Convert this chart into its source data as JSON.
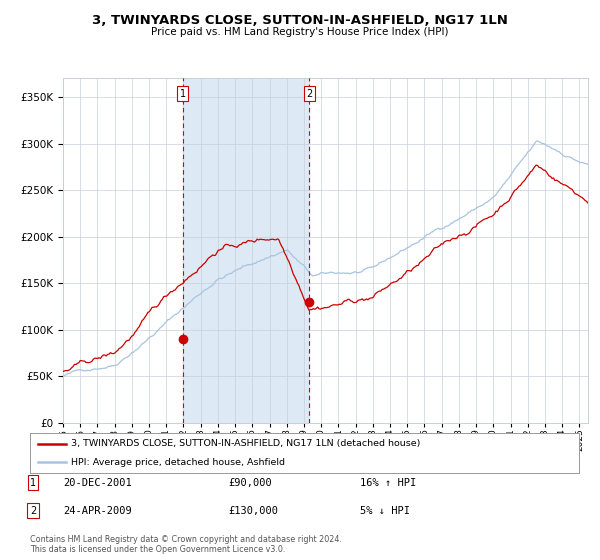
{
  "title": "3, TWINYARDS CLOSE, SUTTON-IN-ASHFIELD, NG17 1LN",
  "subtitle": "Price paid vs. HM Land Registry's House Price Index (HPI)",
  "sale1_date": 2001.97,
  "sale1_price": 90000,
  "sale1_label": "1",
  "sale1_hpi_text": "16% ↑ HPI",
  "sale1_date_str": "20-DEC-2001",
  "sale2_date": 2009.31,
  "sale2_price": 130000,
  "sale2_label": "2",
  "sale2_hpi_text": "5% ↓ HPI",
  "sale2_date_str": "24-APR-2009",
  "legend_line1": "3, TWINYARDS CLOSE, SUTTON-IN-ASHFIELD, NG17 1LN (detached house)",
  "legend_line2": "HPI: Average price, detached house, Ashfield",
  "footer": "Contains HM Land Registry data © Crown copyright and database right 2024.\nThis data is licensed under the Open Government Licence v3.0.",
  "hpi_color": "#a8c4e0",
  "price_color": "#cc0000",
  "shade_color": "#ddeaf5",
  "ylim": [
    0,
    370000
  ],
  "xlim_start": 1995.0,
  "xlim_end": 2025.5,
  "background_color": "#ffffff",
  "grid_color": "#c8d0d8"
}
